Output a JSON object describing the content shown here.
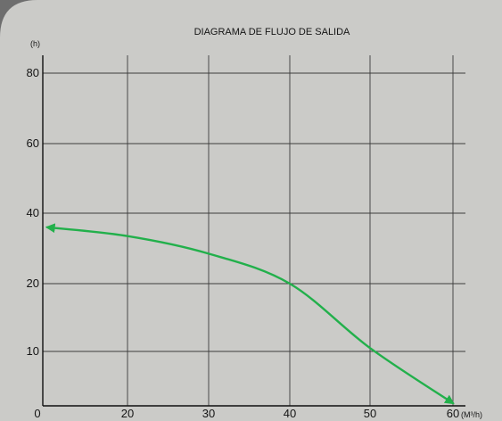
{
  "chart_data": {
    "type": "line",
    "title": "DIAGRAMA DE FLUJO DE SALIDA",
    "ylabel": "(h)",
    "xlabel": "(M³/h)",
    "x_ticks": [
      "0",
      "20",
      "30",
      "40",
      "50",
      "60"
    ],
    "y_ticks": [
      "80",
      "60",
      "40",
      "20",
      "10"
    ],
    "x_categories": [
      0,
      20,
      30,
      40,
      50,
      60
    ],
    "y_categories": [
      0,
      10,
      20,
      40,
      60,
      80
    ],
    "series": [
      {
        "x": [
          0,
          20,
          30,
          40,
          50,
          60
        ],
        "y": [
          36,
          33.5,
          28.5,
          20,
          10.5,
          0
        ],
        "color": "#22b04b"
      }
    ],
    "grid": true,
    "legend": "none"
  }
}
